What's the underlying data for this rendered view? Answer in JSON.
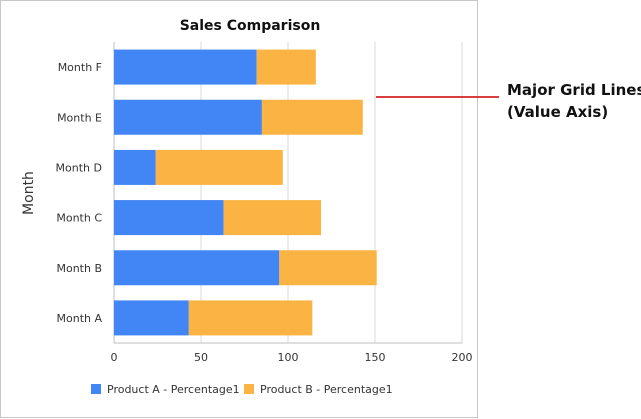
{
  "chart_data": {
    "type": "bar",
    "orientation": "horizontal",
    "stacked": true,
    "title": "Sales Comparison",
    "xlabel": "",
    "ylabel": "Month",
    "categories": [
      "Month A",
      "Month B",
      "Month C",
      "Month D",
      "Month E",
      "Month F"
    ],
    "series": [
      {
        "name": "Product A - Percentage1",
        "color": "#4285f4",
        "values": [
          43,
          95,
          63,
          24,
          85,
          82
        ]
      },
      {
        "name": "Product B - Percentage1",
        "color": "#fbb443",
        "values": [
          71,
          56,
          56,
          73,
          58,
          34
        ]
      }
    ],
    "xlim": [
      0,
      200
    ],
    "xticks": [
      0,
      50,
      100,
      150,
      200
    ],
    "grid": "vertical",
    "legend_position": "bottom-left"
  },
  "callout": {
    "line1": "Major Grid Lines",
    "line2": "(Value Axis)",
    "color": "#cc0000"
  }
}
